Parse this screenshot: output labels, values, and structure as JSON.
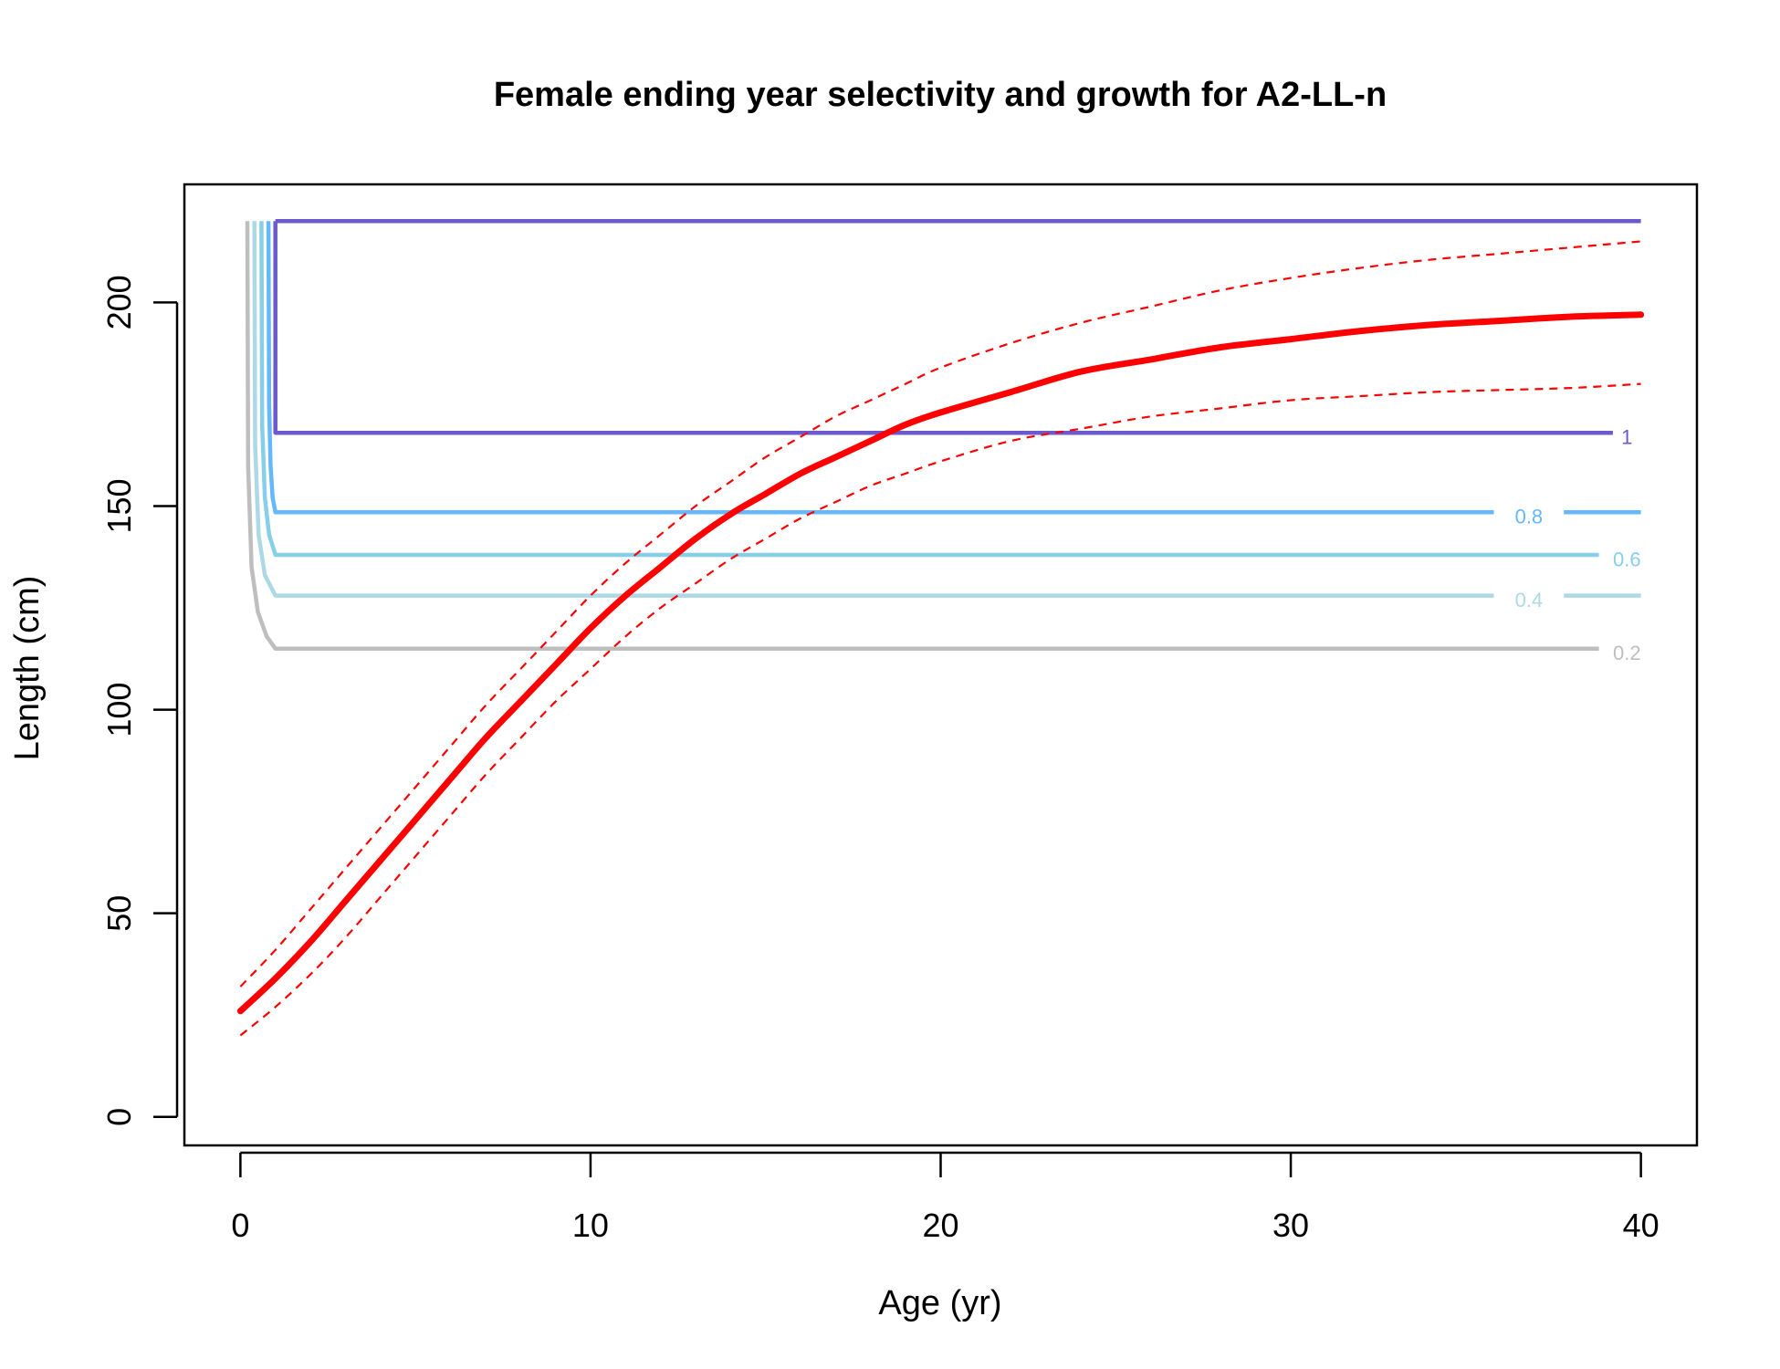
{
  "chart_data": {
    "type": "line",
    "title": "Female ending year selectivity and growth for A2-LL-n",
    "xlabel": "Age (yr)",
    "ylabel": "Length (cm)",
    "xlim": [
      -1.6,
      41.6
    ],
    "ylim": [
      -7,
      229
    ],
    "x_ticks": [
      0,
      10,
      20,
      30,
      40
    ],
    "y_ticks": [
      0,
      50,
      100,
      150,
      200
    ],
    "x_tick_labels": [
      "0",
      "10",
      "20",
      "30",
      "40"
    ],
    "y_tick_labels": [
      "0",
      "50",
      "100",
      "150",
      "200"
    ],
    "grid": false,
    "legend": "none",
    "growth": {
      "color": "#ff0000",
      "mean": {
        "x": [
          0,
          1,
          2,
          3,
          4,
          5,
          6,
          7,
          8,
          9,
          10,
          11,
          12,
          13,
          14,
          15,
          16,
          17,
          18,
          19,
          20,
          22,
          24,
          26,
          28,
          30,
          32,
          34,
          36,
          38,
          40
        ],
        "y": [
          26,
          34,
          43,
          53,
          63,
          73,
          83,
          93,
          102,
          111,
          120,
          128,
          135,
          142,
          148,
          153,
          158,
          162,
          166,
          170,
          173,
          178,
          183,
          186,
          189,
          191,
          193,
          194.5,
          195.5,
          196.5,
          197
        ]
      },
      "upper": {
        "x": [
          0,
          1,
          2,
          3,
          4,
          5,
          6,
          7,
          8,
          9,
          10,
          11,
          12,
          13,
          14,
          15,
          16,
          17,
          18,
          19,
          20,
          22,
          24,
          26,
          28,
          30,
          32,
          34,
          36,
          38,
          40
        ],
        "y": [
          32,
          41,
          51,
          61,
          71,
          81,
          91,
          101,
          110,
          119,
          128,
          136,
          143,
          150,
          156,
          162,
          167,
          172,
          176,
          180,
          184,
          190,
          195,
          199,
          203,
          206,
          208.5,
          210.5,
          212,
          213.5,
          215
        ]
      },
      "lower": {
        "x": [
          0,
          1,
          2,
          3,
          4,
          5,
          6,
          7,
          8,
          9,
          10,
          11,
          12,
          13,
          14,
          15,
          16,
          17,
          18,
          19,
          20,
          22,
          24,
          26,
          28,
          30,
          32,
          34,
          36,
          38,
          40
        ],
        "y": [
          20,
          27,
          35,
          44,
          54,
          64,
          74,
          84,
          93,
          102,
          110,
          118,
          125,
          131,
          137,
          142,
          147,
          151,
          155,
          158,
          161,
          166,
          169,
          172,
          174,
          176,
          177,
          178,
          178.5,
          179,
          180
        ]
      }
    },
    "selectivity_contours": [
      {
        "level": "1",
        "color": "#6a5acd",
        "curve_x": [
          1.0,
          1.0
        ],
        "curve_y": [
          220,
          168
        ],
        "line_x": [
          1.0,
          39.2
        ],
        "line_y": 168,
        "label_x": 39.6,
        "label_y": 167,
        "line2_x": [
          40,
          40
        ],
        "line2_y": 168
      },
      {
        "level": "0.8",
        "color": "#63b8ff",
        "curve_x": [
          0.8,
          0.82,
          0.86,
          0.92,
          1.0
        ],
        "curve_y": [
          220,
          175,
          160,
          152,
          148.5
        ],
        "line_x": [
          1.0,
          35.8
        ],
        "line_y": 148.5,
        "label_x": 36.8,
        "label_y": 147.5,
        "line2_x": [
          37.8,
          40
        ],
        "line2_y": 148.5
      },
      {
        "level": "0.6",
        "color": "#87ceeb",
        "curve_x": [
          0.6,
          0.62,
          0.7,
          0.82,
          1.0
        ],
        "curve_y": [
          220,
          170,
          152,
          143,
          138
        ],
        "line_x": [
          1.0,
          38.8
        ],
        "line_y": 138,
        "label_x": 39.6,
        "label_y": 137,
        "line2_x": [
          40,
          40
        ],
        "line2_y": 138
      },
      {
        "level": "0.4",
        "color": "#add8e6",
        "curve_x": [
          0.4,
          0.42,
          0.52,
          0.7,
          1.0
        ],
        "curve_y": [
          220,
          165,
          143,
          133,
          128
        ],
        "line_x": [
          1.0,
          35.8
        ],
        "line_y": 128,
        "label_x": 36.8,
        "label_y": 127,
        "line2_x": [
          37.8,
          40
        ],
        "line2_y": 128
      },
      {
        "level": "0.2",
        "color": "#bebebe",
        "curve_x": [
          0.2,
          0.22,
          0.32,
          0.5,
          0.75,
          1.0
        ],
        "curve_y": [
          220,
          160,
          135,
          124,
          118,
          115
        ],
        "line_x": [
          1.0,
          38.8
        ],
        "line_y": 115,
        "label_x": 39.6,
        "label_y": 114,
        "line2_x": [
          40,
          40
        ],
        "line2_y": 115
      }
    ],
    "top_line": {
      "x": [
        1.0,
        40
      ],
      "y": 220,
      "color": "#6a5acd"
    }
  }
}
